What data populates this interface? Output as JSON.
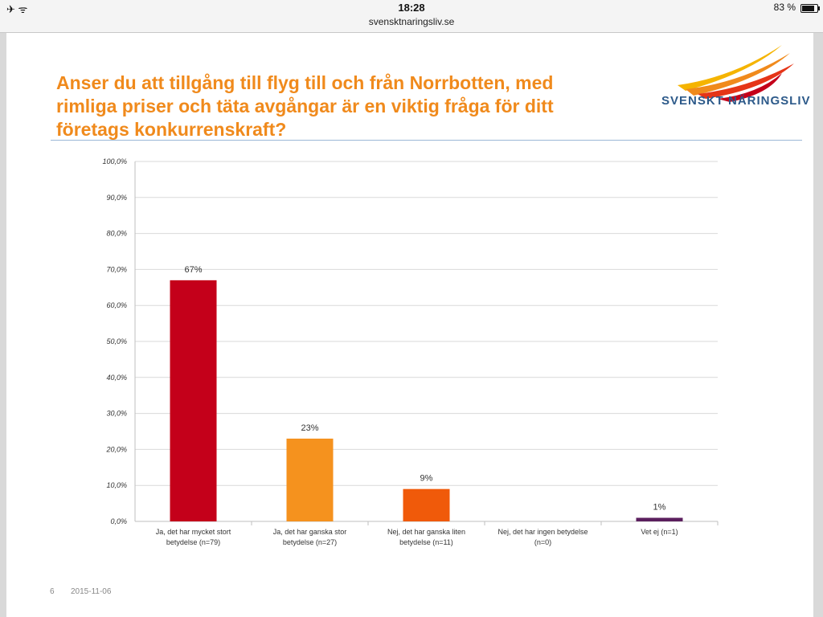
{
  "status_bar": {
    "time": "18:28",
    "url": "svensktnaringsliv.se",
    "battery": "83 %",
    "battery_level": 0.83
  },
  "slide": {
    "title_lines": [
      "Anser du att tillgång till flyg till och från Norrbotten, med",
      "rimliga priser och täta avgångar är en viktig fråga för ditt",
      "företags konkurrenskraft?"
    ],
    "logo_text": "SVENSKT NÄRINGSLIV",
    "page_number": "6",
    "date": "2015-11-06",
    "colors": {
      "title": "#f08a1c",
      "logo_text": "#2d5a8a"
    }
  },
  "chart_data": {
    "type": "bar",
    "title": "",
    "xlabel": "",
    "ylabel": "",
    "ylim": [
      0,
      100
    ],
    "yticks": [
      "0,0%",
      "10,0%",
      "20,0%",
      "30,0%",
      "40,0%",
      "50,0%",
      "60,0%",
      "70,0%",
      "80,0%",
      "90,0%",
      "100,0%"
    ],
    "categories": [
      [
        "Ja, det har mycket stort",
        "betydelse (n=79)"
      ],
      [
        "Ja, det har ganska stor",
        "betydelse  (n=27)"
      ],
      [
        "Nej, det har ganska liten",
        "betydelse (n=11)"
      ],
      [
        "Nej, det har ingen betydelse",
        "(n=0)"
      ],
      [
        "Vet ej (n=1)"
      ]
    ],
    "values": [
      67,
      23,
      9,
      0,
      1
    ],
    "data_labels": [
      "67%",
      "23%",
      "9%",
      "",
      "1%"
    ],
    "colors": [
      "#c4001a",
      "#f5921e",
      "#f05a0a",
      "#999999",
      "#5b1f5e"
    ],
    "grid": true
  }
}
